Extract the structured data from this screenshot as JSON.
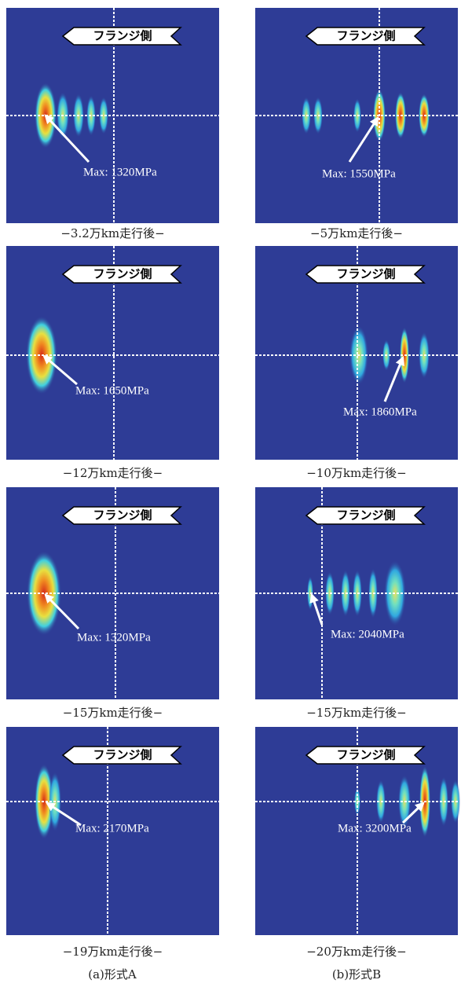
{
  "panels": [
    {
      "flange_label": "フランジ側",
      "max_label": "Max: 1320MPa",
      "caption": "−3.2万km走行後−"
    },
    {
      "flange_label": "フランジ側",
      "max_label": "Max: 1550MPa",
      "caption": "−5万km走行後−"
    },
    {
      "flange_label": "フランジ側",
      "max_label": "Max: 1650MPa",
      "caption": "−12万km走行後−"
    },
    {
      "flange_label": "フランジ側",
      "max_label": "Max: 1860MPa",
      "caption": "−10万km走行後−"
    },
    {
      "flange_label": "フランジ側",
      "max_label": "Max: 1320MPa",
      "caption": "−15万km走行後−"
    },
    {
      "flange_label": "フランジ側",
      "max_label": "Max: 2040MPa",
      "caption": "−15万km走行後−"
    },
    {
      "flange_label": "フランジ側",
      "max_label": "Max: 2170MPa",
      "caption": "−19万km走行後−"
    },
    {
      "flange_label": "フランジ側",
      "max_label": "Max: 3200MPa",
      "caption": "−20万km走行後−"
    }
  ],
  "columns": [
    "(a)形式A",
    "(b)形式B"
  ]
}
